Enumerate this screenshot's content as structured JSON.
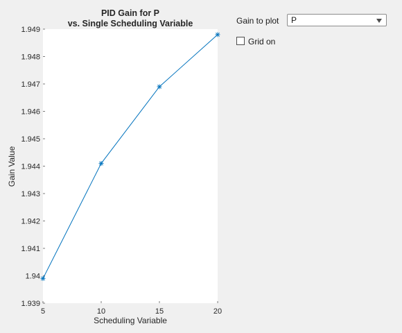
{
  "controls": {
    "gain_label": "Gain to plot",
    "gain_selected": "P",
    "grid_label": "Grid on",
    "grid_checked": false
  },
  "chart_data": {
    "type": "line",
    "title_lines": [
      "PID Gain for P",
      "vs. Single Scheduling Variable"
    ],
    "xlabel": "Scheduling Variable",
    "ylabel": "Gain Value",
    "xlim": [
      5,
      20
    ],
    "ylim": [
      1.939,
      1.949
    ],
    "xticks": [
      "5",
      "10",
      "15",
      "20"
    ],
    "yticks": [
      "1.939",
      "1.94",
      "1.941",
      "1.942",
      "1.943",
      "1.944",
      "1.945",
      "1.946",
      "1.947",
      "1.948",
      "1.949"
    ],
    "grid": false,
    "series": [
      {
        "x": [
          5,
          10,
          15,
          20
        ],
        "y": [
          1.9399,
          1.9441,
          1.9469,
          1.9488
        ],
        "color": "#0072bd",
        "marker": "asterisk"
      }
    ]
  }
}
